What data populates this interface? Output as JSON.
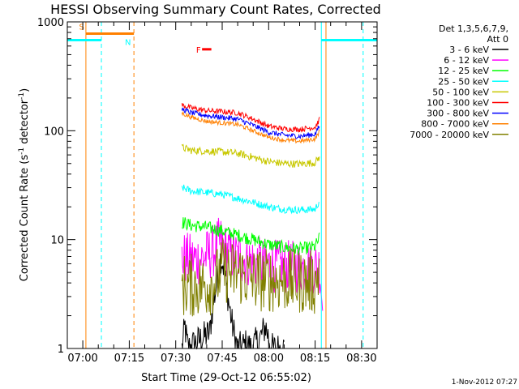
{
  "chart_data": {
    "type": "line",
    "title": "HESSI Observing Summary Count Rates, Corrected",
    "xlabel": "Start Time (29-Oct-12 06:55:02)",
    "ylabel_parts": [
      "Corrected Count Rate (s",
      "-1",
      " detector",
      "-1",
      ")"
    ],
    "x_unit": "minutes after 06:55:02",
    "xlim": [
      0,
      100
    ],
    "ylim": [
      1,
      1000
    ],
    "yscale": "log",
    "xticks": [
      {
        "label": "07:00",
        "t": 5
      },
      {
        "label": "07:15",
        "t": 20
      },
      {
        "label": "07:30",
        "t": 35
      },
      {
        "label": "07:45",
        "t": 50
      },
      {
        "label": "08:00",
        "t": 65
      },
      {
        "label": "08:15",
        "t": 80
      },
      {
        "label": "08:30",
        "t": 95
      }
    ],
    "yticks": [
      {
        "label": "1",
        "v": 1
      },
      {
        "label": "10",
        "v": 10
      },
      {
        "label": "100",
        "v": 100
      },
      {
        "label": "1000",
        "v": 1000
      }
    ],
    "legend_header": [
      "Det 1,3,5,6,7,9,",
      "Att 0"
    ],
    "legend_position": "right, outside plot",
    "footer": "1-Nov-2012 07:27",
    "series": [
      {
        "name": "3 - 6 keV",
        "color": "#000000",
        "noise": 0.15,
        "points": [
          [
            37,
            1
          ],
          [
            38,
            1.6
          ],
          [
            38.5,
            1.2
          ],
          [
            39,
            1
          ],
          [
            46,
            1.4
          ],
          [
            47,
            2.5
          ],
          [
            48,
            3.6
          ],
          [
            48.8,
            5
          ],
          [
            49.5,
            7
          ],
          [
            50.3,
            6
          ],
          [
            51,
            4.5
          ],
          [
            52,
            2.8
          ],
          [
            53,
            1.8
          ],
          [
            54,
            1.3
          ],
          [
            55,
            1
          ],
          [
            58,
            1.1
          ],
          [
            59,
            1
          ],
          [
            62,
            1.2
          ],
          [
            64,
            1.6
          ],
          [
            66,
            1
          ],
          [
            70,
            1
          ]
        ]
      },
      {
        "name": "6 - 12 keV",
        "color": "#ff00ff",
        "noise": 0.25,
        "points": [
          [
            37,
            6.8
          ],
          [
            40,
            6.5
          ],
          [
            44,
            6.8
          ],
          [
            47,
            7.8
          ],
          [
            49.5,
            9.5
          ],
          [
            51,
            8
          ],
          [
            54,
            7
          ],
          [
            58,
            6.5
          ],
          [
            62,
            6
          ],
          [
            70,
            5.6
          ],
          [
            78,
            5.6
          ],
          [
            81.5,
            5.6
          ],
          [
            82.5,
            2.2
          ]
        ]
      },
      {
        "name": "12 - 25 keV",
        "color": "#00ff00",
        "noise": 0.06,
        "points": [
          [
            37,
            14.5
          ],
          [
            40,
            13.5
          ],
          [
            45,
            13
          ],
          [
            50,
            12
          ],
          [
            55,
            11
          ],
          [
            60,
            10
          ],
          [
            65,
            9
          ],
          [
            70,
            8.5
          ],
          [
            75,
            8.2
          ],
          [
            80,
            8.6
          ],
          [
            81.5,
            10.5
          ]
        ]
      },
      {
        "name": "25 - 50 keV",
        "color": "#00ffff",
        "noise": 0.035,
        "points": [
          [
            37,
            30
          ],
          [
            40,
            28
          ],
          [
            45,
            27
          ],
          [
            50,
            26
          ],
          [
            55,
            24
          ],
          [
            60,
            22
          ],
          [
            65,
            20
          ],
          [
            70,
            19
          ],
          [
            75,
            18.7
          ],
          [
            80,
            19
          ],
          [
            81.5,
            23
          ]
        ]
      },
      {
        "name": "50 - 100 keV",
        "color": "#c8c800",
        "noise": 0.035,
        "points": [
          [
            37,
            70
          ],
          [
            40,
            66
          ],
          [
            45,
            65
          ],
          [
            50,
            64
          ],
          [
            55,
            62
          ],
          [
            60,
            57
          ],
          [
            65,
            52
          ],
          [
            70,
            50
          ],
          [
            75,
            49.5
          ],
          [
            80,
            51
          ],
          [
            81.5,
            58
          ]
        ]
      },
      {
        "name": "100 - 300 keV",
        "color": "#ff0000",
        "noise": 0.025,
        "points": [
          [
            37,
            172
          ],
          [
            40,
            162
          ],
          [
            45,
            153
          ],
          [
            50,
            150
          ],
          [
            55,
            146
          ],
          [
            60,
            128
          ],
          [
            65,
            110
          ],
          [
            70,
            104
          ],
          [
            75,
            103
          ],
          [
            80,
            108
          ],
          [
            81.5,
            128
          ]
        ]
      },
      {
        "name": "300 - 800 keV",
        "color": "#0000ff",
        "noise": 0.025,
        "points": [
          [
            37,
            158
          ],
          [
            40,
            146
          ],
          [
            45,
            138
          ],
          [
            50,
            133
          ],
          [
            55,
            128
          ],
          [
            60,
            112
          ],
          [
            65,
            97
          ],
          [
            70,
            91
          ],
          [
            75,
            89
          ],
          [
            80,
            93
          ],
          [
            81.5,
            112
          ]
        ]
      },
      {
        "name": "800 - 7000 keV",
        "color": "#ff8000",
        "noise": 0.02,
        "points": [
          [
            37,
            145
          ],
          [
            40,
            133
          ],
          [
            45,
            122
          ],
          [
            50,
            118
          ],
          [
            55,
            114
          ],
          [
            60,
            100
          ],
          [
            65,
            87
          ],
          [
            70,
            82
          ],
          [
            75,
            80
          ],
          [
            80,
            84
          ],
          [
            81.5,
            100
          ]
        ]
      },
      {
        "name": "7000 - 20000 keV",
        "color": "#808000",
        "noise": 0.3,
        "points": [
          [
            37,
            3.8
          ],
          [
            45,
            3.8
          ],
          [
            48,
            4.2
          ],
          [
            50,
            5.4
          ],
          [
            52,
            5
          ],
          [
            56,
            4.8
          ],
          [
            60,
            4.3
          ],
          [
            70,
            4.2
          ],
          [
            80,
            4
          ],
          [
            81.5,
            5.5
          ]
        ]
      }
    ],
    "flags": [
      {
        "label": "S",
        "color": "#ff8000",
        "from": 6,
        "to": 21.5,
        "value": 780
      },
      {
        "label": "N",
        "color": "#00ffff",
        "from": 0,
        "to": 11,
        "value": 680
      },
      {
        "label": "N",
        "color": "#00ffff",
        "from": 82,
        "to": 100,
        "value": 680
      },
      {
        "label": "F",
        "color": "#ff0000",
        "from": 43.5,
        "to": 46.5,
        "value": 560
      }
    ],
    "vlines": [
      {
        "t": 6,
        "color": "#ff8000",
        "style": "solid"
      },
      {
        "t": 21.5,
        "color": "#ff8000",
        "style": "dashed"
      },
      {
        "t": 11,
        "color": "#00ffff",
        "style": "dashed"
      },
      {
        "t": 82,
        "color": "#00ffff",
        "style": "solid"
      },
      {
        "t": 83.5,
        "color": "#ff8000",
        "style": "solid"
      },
      {
        "t": 95.5,
        "color": "#00ffff",
        "style": "dashed"
      }
    ]
  }
}
